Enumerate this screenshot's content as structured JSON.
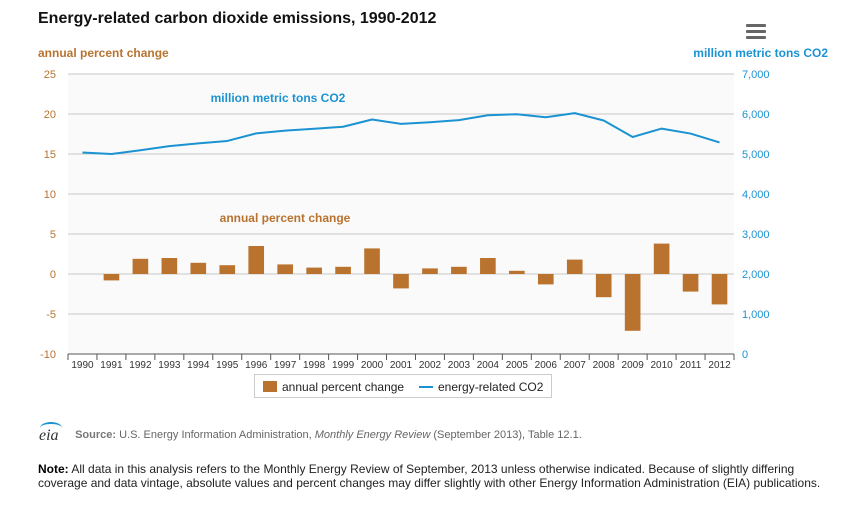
{
  "title": "Energy-related carbon dioxide emissions, 1990-2012",
  "menu": {
    "icon": "hamburger-menu-icon"
  },
  "chart_data": {
    "type": "bar+line",
    "categories": [
      "1990",
      "1991",
      "1992",
      "1993",
      "1994",
      "1995",
      "1996",
      "1997",
      "1998",
      "1999",
      "2000",
      "2001",
      "2002",
      "2003",
      "2004",
      "2005",
      "2006",
      "2007",
      "2008",
      "2009",
      "2010",
      "2011",
      "2012"
    ],
    "series": [
      {
        "name": "annual percent change",
        "type": "bar",
        "axis": "left",
        "color": "#b9732f",
        "values": [
          null,
          -0.8,
          1.9,
          2.0,
          1.4,
          1.1,
          3.5,
          1.2,
          0.8,
          0.9,
          3.2,
          -1.8,
          0.7,
          0.9,
          2.0,
          0.4,
          -1.3,
          1.8,
          -2.9,
          -7.1,
          3.8,
          -2.2,
          -3.8
        ]
      },
      {
        "name": "energy-related CO2",
        "type": "line",
        "axis": "right",
        "color": "#1b93d2",
        "values": [
          5039,
          5000,
          5095,
          5196,
          5267,
          5326,
          5516,
          5584,
          5631,
          5681,
          5862,
          5752,
          5794,
          5848,
          5968,
          5994,
          5919,
          6022,
          5838,
          5425,
          5635,
          5511,
          5290
        ]
      }
    ],
    "left_axis": {
      "title": "annual percent change",
      "min": -10,
      "max": 25,
      "ticks": [
        -10,
        -5,
        0,
        5,
        10,
        15,
        20,
        25
      ]
    },
    "right_axis": {
      "title": "million metric tons CO2",
      "min": 0,
      "max": 7000,
      "ticks": [
        "0",
        "1,000",
        "2,000",
        "3,000",
        "4,000",
        "5,000",
        "6,000",
        "7,000"
      ]
    },
    "annotations": [
      "million metric tons CO2",
      "annual percent change"
    ],
    "grid": true,
    "legend": "bottom-center"
  },
  "legend": {
    "bar_label": "annual percent change",
    "line_label": "energy-related CO2"
  },
  "source": {
    "prefix": "Source:",
    "text_before": "U.S. Energy Information Administration,",
    "publication": "Monthly Energy Review",
    "text_after": "(September 2013), Table 12.1.",
    "logo_text": "eia"
  },
  "note": {
    "prefix": "Note:",
    "text": "All data in this analysis refers to the Monthly Energy Review of September, 2013 unless otherwise indicated. Because of slightly differing coverage and data vintage, absolute values and percent changes may differ slightly with other Energy Information Administration (EIA) publications."
  }
}
